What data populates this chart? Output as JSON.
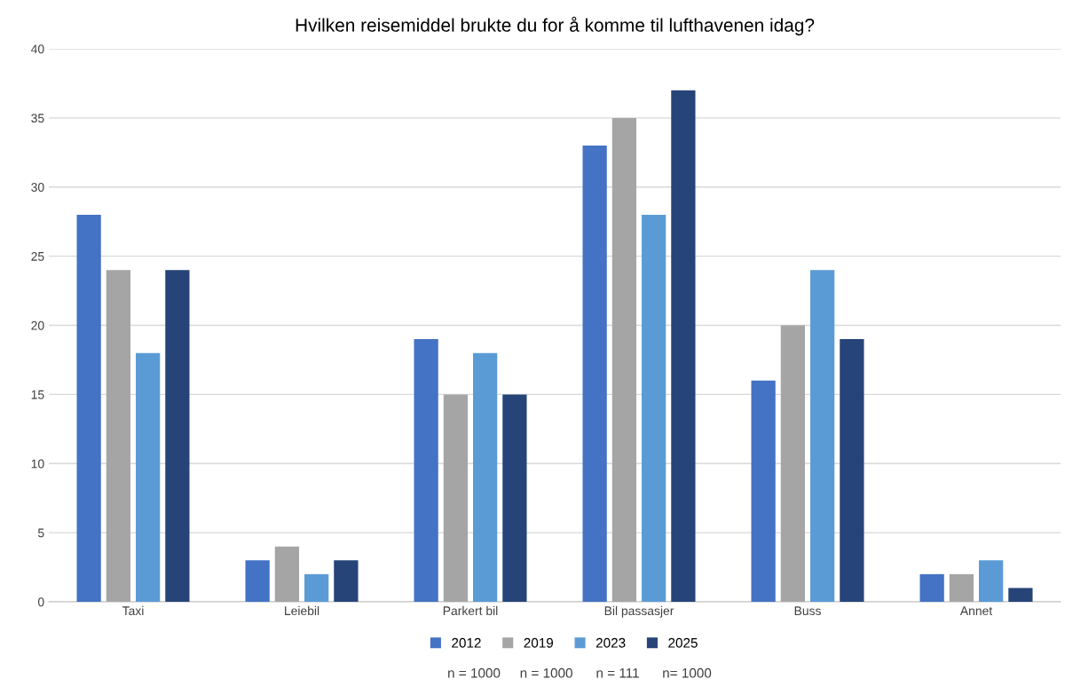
{
  "chart_data": {
    "type": "bar",
    "title": "Hvilken reisemiddel brukte du for å komme til lufthavenen idag?",
    "categories": [
      "Taxi",
      "Leiebil",
      "Parkert bil",
      "Bil passasjer",
      "Buss",
      "Annet"
    ],
    "series": [
      {
        "name": "2012",
        "color": "#4472c4",
        "values": [
          28,
          3,
          19,
          33,
          16,
          2
        ]
      },
      {
        "name": "2019",
        "color": "#a5a5a5",
        "values": [
          24,
          4,
          15,
          35,
          20,
          2
        ]
      },
      {
        "name": "2023",
        "color": "#5b9bd5",
        "values": [
          18,
          2,
          18,
          28,
          24,
          3
        ]
      },
      {
        "name": "2025",
        "color": "#264478",
        "values": [
          24,
          3,
          15,
          37,
          19,
          1
        ]
      }
    ],
    "annotations": [
      "n = 1000",
      "n = 1000",
      "n = 111",
      "n= 1000"
    ],
    "ylim": [
      0,
      40
    ],
    "yticks": [
      0,
      5,
      10,
      15,
      20,
      25,
      30,
      35,
      40
    ],
    "grid": "y",
    "legend": "bottom"
  }
}
